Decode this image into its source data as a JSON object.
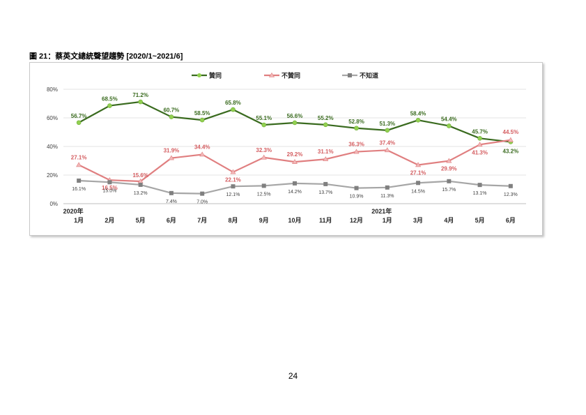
{
  "figure": {
    "title": "圖 21：蔡英文總統聲望趨勢  [2020/1~2021/6]",
    "page_number": "24"
  },
  "chart_data": {
    "type": "line",
    "x": [
      "2020年|1月",
      "2月",
      "5月",
      "6月",
      "7月",
      "8月",
      "9月",
      "10月",
      "11月",
      "12月",
      "2021年|1月",
      "3月",
      "4月",
      "5月",
      "6月"
    ],
    "ylim": [
      0,
      80
    ],
    "yticks": [
      "0%",
      "20%",
      "40%",
      "60%",
      "80%"
    ],
    "ytick_values": [
      0,
      20,
      40,
      60,
      80
    ],
    "grid": true,
    "legend_position": "top",
    "series": [
      {
        "name": "贊同",
        "color": "#3a6b1f",
        "marker_color": "#92d050",
        "marker": "circle",
        "values": [
          56.7,
          68.5,
          71.2,
          60.7,
          58.5,
          65.8,
          55.1,
          56.6,
          55.2,
          52.8,
          51.3,
          58.4,
          54.4,
          45.7,
          43.2
        ],
        "labels": [
          "56.7%",
          "68.5%",
          "71.2%",
          "60.7%",
          "58.5%",
          "65.8%",
          "55.1%",
          "56.6%",
          "55.2%",
          "52.8%",
          "51.3%",
          "58.4%",
          "54.4%",
          "45.7%",
          "43.2%"
        ]
      },
      {
        "name": "不贊同",
        "color": "#e07f80",
        "marker_color": "#f2b8b8",
        "marker": "triangle",
        "values": [
          27.1,
          16.5,
          15.6,
          31.9,
          34.4,
          22.1,
          32.3,
          29.2,
          31.1,
          36.3,
          37.4,
          27.1,
          29.9,
          41.3,
          44.5
        ],
        "labels": [
          "27.1%",
          "16.5%",
          "15.6%",
          "31.9%",
          "34.4%",
          "22.1%",
          "32.3%",
          "29.2%",
          "31.1%",
          "36.3%",
          "37.4%",
          "27.1%",
          "29.9%",
          "41.3%",
          "44.5%"
        ]
      },
      {
        "name": "不知道",
        "color": "#a6a6a6",
        "marker_color": "#808080",
        "marker": "square",
        "values": [
          16.1,
          15.0,
          13.2,
          7.4,
          7.0,
          12.1,
          12.5,
          14.2,
          13.7,
          10.9,
          11.3,
          14.5,
          15.7,
          13.1,
          12.3
        ],
        "labels": [
          "16.1%",
          "15.0%",
          "13.2%",
          "7.4%",
          "7.0%",
          "12.1%",
          "12.5%",
          "14.2%",
          "13.7%",
          "10.9%",
          "11.3%",
          "14.5%",
          "15.7%",
          "13.1%",
          "12.3%"
        ]
      }
    ]
  }
}
